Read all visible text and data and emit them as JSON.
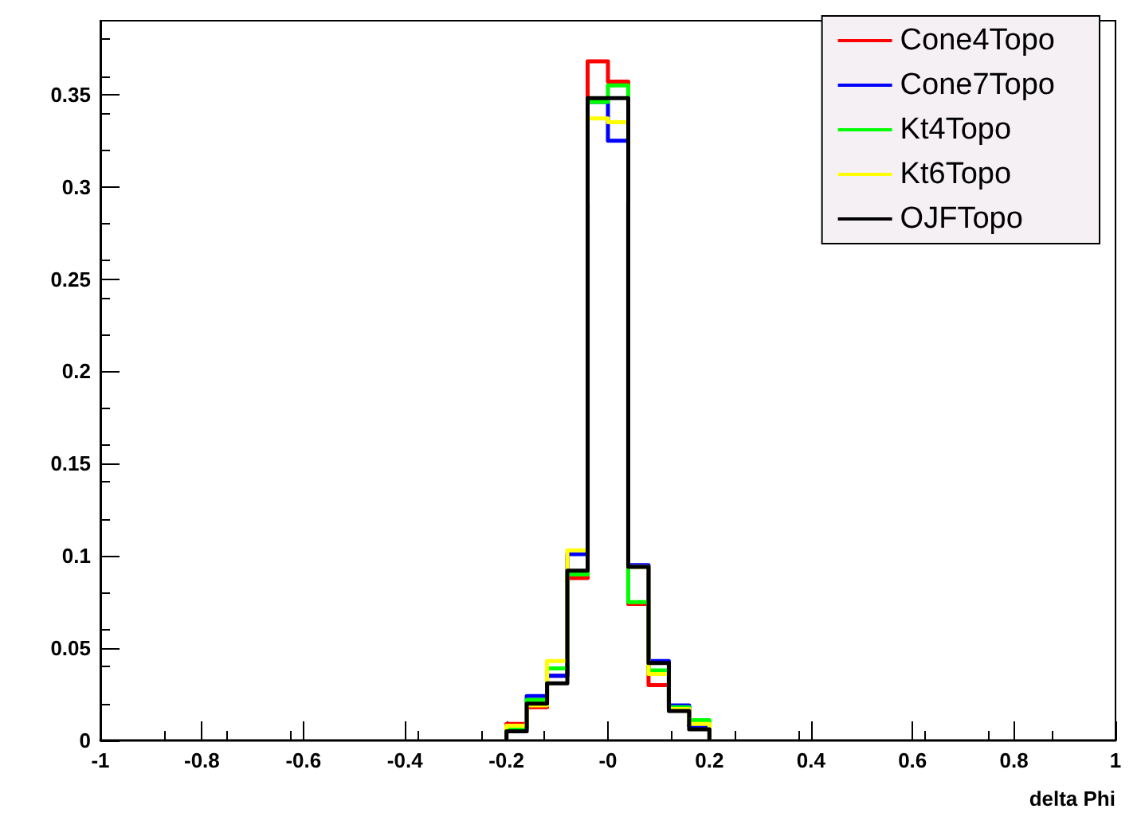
{
  "chart_data": {
    "type": "histogram",
    "xlabel": "delta Phi",
    "bins": [
      -0.2,
      -0.16,
      -0.12,
      -0.08,
      -0.04,
      0,
      0.04,
      0.08,
      0.12,
      0.16,
      0.2
    ],
    "series": [
      {
        "name": "Cone4Topo",
        "color": "#ff0000",
        "values": [
          0.009,
          0.018,
          0.035,
          0.088,
          0.368,
          0.357,
          0.074,
          0.03,
          0.017,
          0.008
        ]
      },
      {
        "name": "Cone7Topo",
        "color": "#0000ff",
        "values": [
          0.007,
          0.024,
          0.035,
          0.101,
          0.346,
          0.325,
          0.095,
          0.043,
          0.019,
          0.008
        ]
      },
      {
        "name": "Kt4Topo",
        "color": "#00ff00",
        "values": [
          0.007,
          0.022,
          0.039,
          0.09,
          0.346,
          0.355,
          0.075,
          0.038,
          0.018,
          0.011
        ]
      },
      {
        "name": "Kt6Topo",
        "color": "#ffff00",
        "values": [
          0.008,
          0.019,
          0.043,
          0.103,
          0.337,
          0.335,
          0.094,
          0.036,
          0.017,
          0.009
        ]
      },
      {
        "name": "OJFTopo",
        "color": "#000000",
        "values": [
          0.005,
          0.02,
          0.031,
          0.092,
          0.348,
          0.348,
          0.094,
          0.042,
          0.016,
          0.006
        ]
      }
    ],
    "xlim": [
      -1,
      1
    ],
    "xticks": [
      -1,
      -0.8,
      -0.6,
      -0.4,
      -0.2,
      {
        "value": 0,
        "label": "-0"
      },
      0.2,
      0.4,
      0.6,
      0.8,
      1
    ],
    "ylim": [
      0,
      0.39
    ],
    "yticks": [
      0,
      0.05,
      0.1,
      0.15,
      0.2,
      0.25,
      0.3,
      0.35
    ],
    "grid": false,
    "legend": "top right",
    "line_style": "solid"
  }
}
